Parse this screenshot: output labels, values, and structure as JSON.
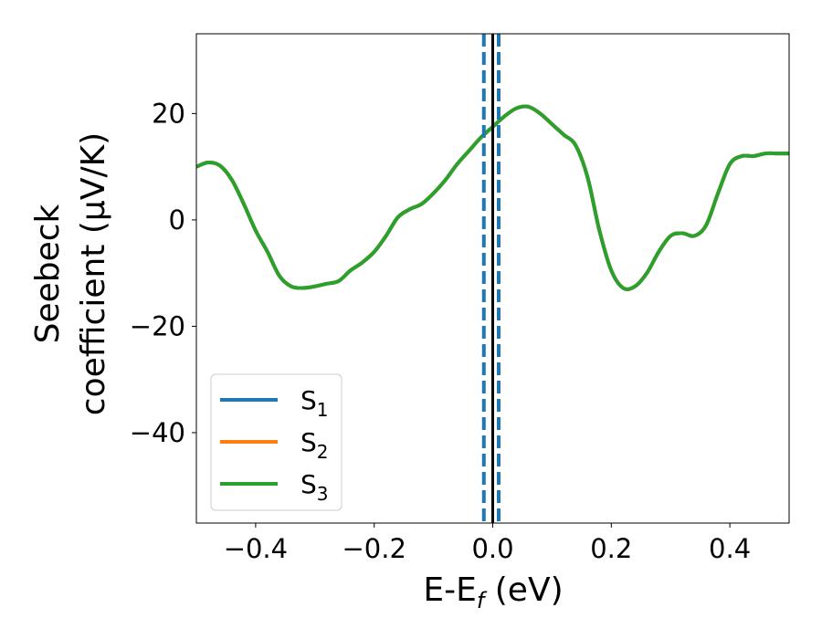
{
  "chart_data": {
    "type": "line",
    "xlabel": "E-E",
    "xlabel_sub": "f",
    "xlabel_unit": " (eV)",
    "ylabel_line1": "Seebeck",
    "ylabel_line2": "coefficient  (μV/K)",
    "xlim": [
      -0.5,
      0.5
    ],
    "ylim": [
      -57,
      35
    ],
    "xticks": [
      -0.4,
      -0.2,
      0.0,
      0.2,
      0.4
    ],
    "xtick_labels": [
      "−0.4",
      "−0.2",
      "0.0",
      "0.2",
      "0.4"
    ],
    "yticks": [
      20,
      0,
      -20,
      -40
    ],
    "ytick_labels": [
      "20",
      "0",
      "−20",
      "−40"
    ],
    "grid": false,
    "legend_position": "lower-left",
    "series": [
      {
        "name": "S",
        "sub": "1",
        "color": "#1f77b4",
        "x": [
          -0.5,
          -0.48,
          -0.46,
          -0.44,
          -0.42,
          -0.4,
          -0.38,
          -0.36,
          -0.34,
          -0.32,
          -0.3,
          -0.28,
          -0.26,
          -0.24,
          -0.22,
          -0.2,
          -0.18,
          -0.16,
          -0.14,
          -0.12,
          -0.1,
          -0.08,
          -0.06,
          -0.04,
          -0.02,
          0.0,
          0.02,
          0.04,
          0.06,
          0.08,
          0.1,
          0.12,
          0.14,
          0.16,
          0.18,
          0.2,
          0.22,
          0.24,
          0.26,
          0.28,
          0.3,
          0.32,
          0.34,
          0.36,
          0.38,
          0.4,
          0.42,
          0.44,
          0.46,
          0.48,
          0.5
        ],
        "y": [
          10,
          10.8,
          10.2,
          7.5,
          3,
          -2,
          -6,
          -10.5,
          -12.5,
          -12.8,
          -12.5,
          -12,
          -11.5,
          -9.5,
          -8,
          -6,
          -3,
          0.5,
          2,
          3,
          5,
          7.5,
          10.5,
          13,
          15.5,
          17.5,
          19.5,
          21,
          21.3,
          20,
          18,
          16,
          14,
          8,
          -2,
          -9.5,
          -12.8,
          -12.5,
          -10,
          -6,
          -3,
          -2.5,
          -3,
          -1,
          5,
          10.5,
          12,
          12,
          12.5,
          12.5,
          12.5
        ]
      },
      {
        "name": "S",
        "sub": "2",
        "color": "#ff7f0e",
        "x": [
          -0.5,
          -0.48,
          -0.46,
          -0.44,
          -0.42,
          -0.4,
          -0.38,
          -0.36,
          -0.34,
          -0.32,
          -0.3,
          -0.28,
          -0.26,
          -0.24,
          -0.22,
          -0.2,
          -0.18,
          -0.16,
          -0.14,
          -0.12,
          -0.1,
          -0.08,
          -0.06,
          -0.04,
          -0.02,
          0.0,
          0.02,
          0.04,
          0.06,
          0.08,
          0.1,
          0.12,
          0.14,
          0.16,
          0.18,
          0.2,
          0.22,
          0.24,
          0.26,
          0.28,
          0.3,
          0.32,
          0.34,
          0.36,
          0.38,
          0.4,
          0.42,
          0.44,
          0.46,
          0.48,
          0.5
        ],
        "y": [
          10,
          10.8,
          10.2,
          7.5,
          3,
          -2,
          -6,
          -10.5,
          -12.5,
          -12.8,
          -12.5,
          -12,
          -11.5,
          -9.5,
          -8,
          -6,
          -3,
          0.5,
          2,
          3,
          5,
          7.5,
          10.5,
          13,
          15.5,
          17.5,
          19.5,
          21,
          21.3,
          20,
          18,
          16,
          14,
          8,
          -2,
          -9.5,
          -12.8,
          -12.5,
          -10,
          -6,
          -3,
          -2.5,
          -3,
          -1,
          5,
          10.5,
          12,
          12,
          12.5,
          12.5,
          12.5
        ]
      },
      {
        "name": "S",
        "sub": "3",
        "color": "#2ca02c",
        "x": [
          -0.5,
          -0.48,
          -0.46,
          -0.44,
          -0.42,
          -0.4,
          -0.38,
          -0.36,
          -0.34,
          -0.32,
          -0.3,
          -0.28,
          -0.26,
          -0.24,
          -0.22,
          -0.2,
          -0.18,
          -0.16,
          -0.14,
          -0.12,
          -0.1,
          -0.08,
          -0.06,
          -0.04,
          -0.02,
          0.0,
          0.02,
          0.04,
          0.06,
          0.08,
          0.1,
          0.12,
          0.14,
          0.16,
          0.18,
          0.2,
          0.22,
          0.24,
          0.26,
          0.28,
          0.3,
          0.32,
          0.34,
          0.36,
          0.38,
          0.4,
          0.42,
          0.44,
          0.46,
          0.48,
          0.5
        ],
        "y": [
          10,
          10.8,
          10.2,
          7.5,
          3,
          -2,
          -6,
          -10.5,
          -12.5,
          -12.8,
          -12.5,
          -12,
          -11.5,
          -9.5,
          -8,
          -6,
          -3,
          0.5,
          2,
          3,
          5,
          7.5,
          10.5,
          13,
          15.5,
          17.5,
          19.5,
          21,
          21.3,
          20,
          18,
          16,
          14,
          8,
          -2,
          -9.5,
          -12.8,
          -12.5,
          -10,
          -6,
          -3,
          -2.5,
          -3,
          -1,
          5,
          10.5,
          12,
          12,
          12.5,
          12.5,
          12.5
        ]
      }
    ],
    "vlines": [
      {
        "x": 0.0,
        "color": "#000000",
        "style": "solid"
      },
      {
        "x": -0.015,
        "color": "#1f77b4",
        "style": "dashed"
      },
      {
        "x": 0.01,
        "color": "#1f77b4",
        "style": "dashed"
      }
    ]
  }
}
